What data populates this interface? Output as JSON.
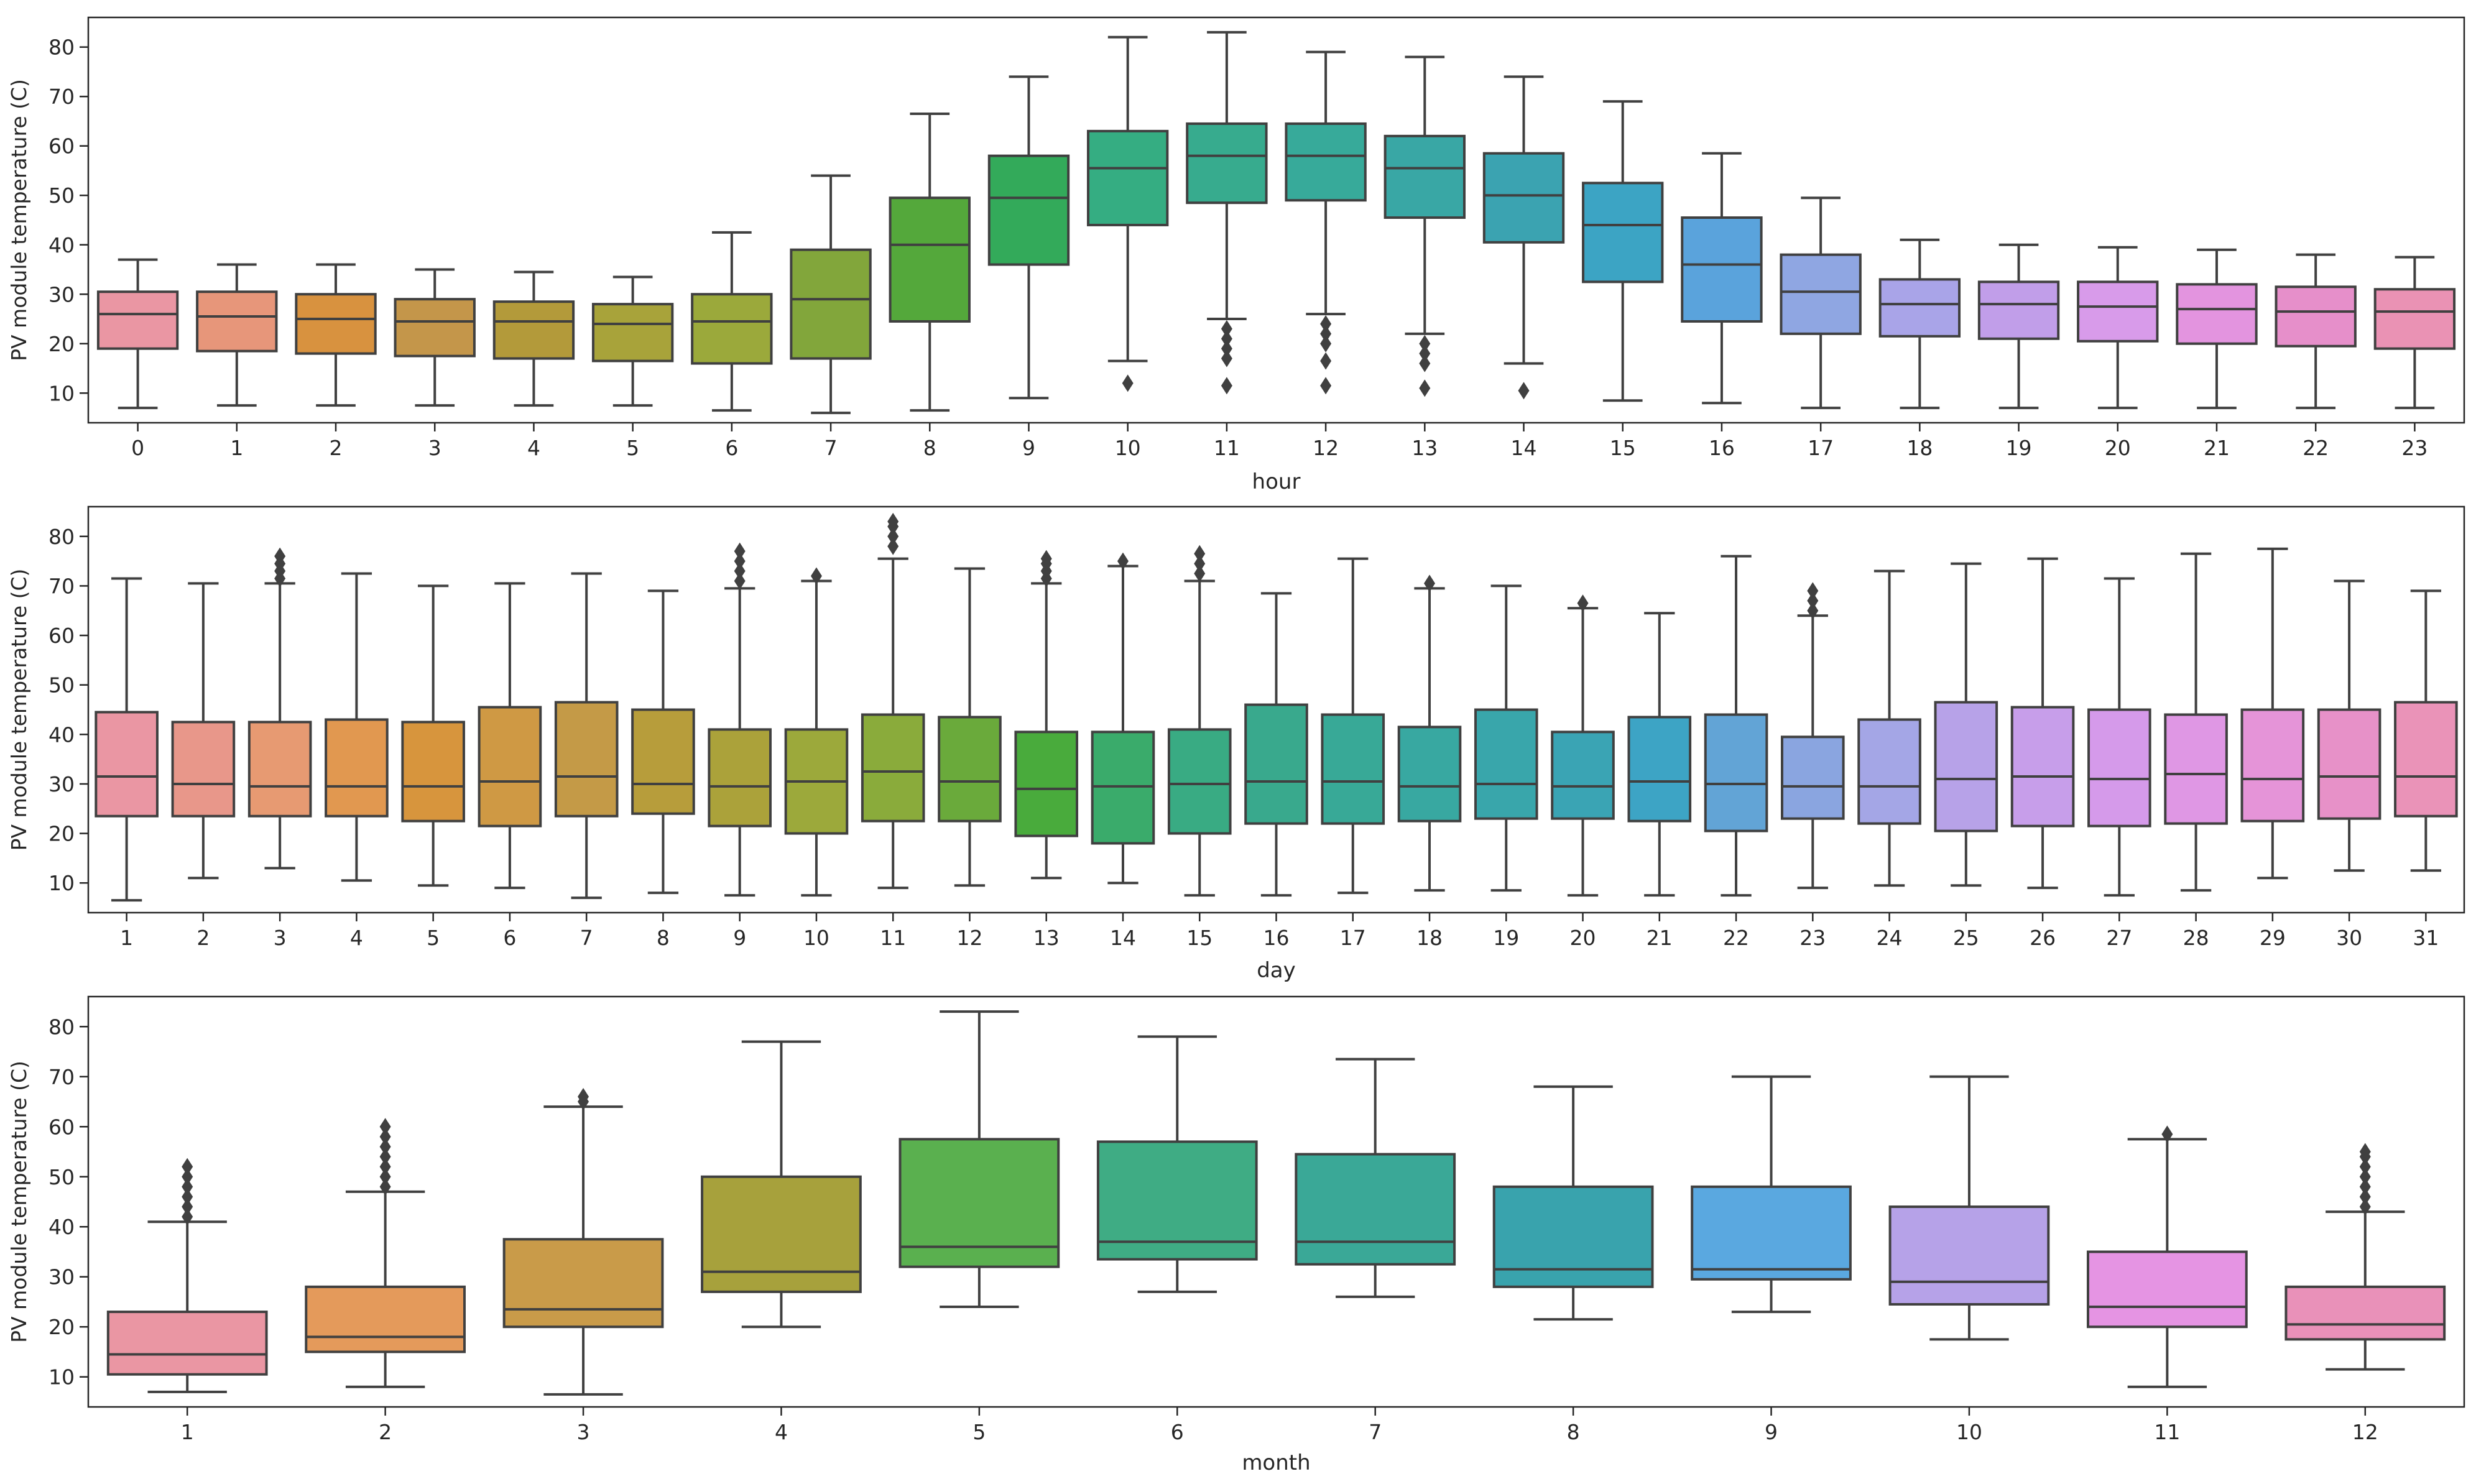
{
  "chart_data": [
    {
      "type": "boxplot",
      "xlabel": "hour",
      "ylabel": "PV module temperature (C)",
      "ylim": [
        4,
        86
      ],
      "yticks": [
        10,
        20,
        30,
        40,
        50,
        60,
        70,
        80
      ],
      "categories": [
        "0",
        "1",
        "2",
        "3",
        "4",
        "5",
        "6",
        "7",
        "8",
        "9",
        "10",
        "11",
        "12",
        "13",
        "14",
        "15",
        "16",
        "17",
        "18",
        "19",
        "20",
        "21",
        "22",
        "23"
      ],
      "colors": [
        "#ea96a3",
        "#e7967a",
        "#d8923f",
        "#c4964a",
        "#b39a3a",
        "#a8a33a",
        "#9ba93b",
        "#82a63b",
        "#54a83b",
        "#33aa5a",
        "#35ad82",
        "#37ab8e",
        "#37aa9a",
        "#39a7a5",
        "#3ba3b1",
        "#3ca4c4",
        "#5aa3dc",
        "#8fa6e2",
        "#a9a4e8",
        "#c19ee9",
        "#d89bea",
        "#e394df",
        "#e68fca",
        "#ea92b4"
      ],
      "series": [
        {
          "label": "0",
          "whislo": 7,
          "q1": 19,
          "median": 26,
          "q3": 30.5,
          "whishi": 37,
          "fliers": []
        },
        {
          "label": "1",
          "whislo": 7.5,
          "q1": 18.5,
          "median": 25.5,
          "q3": 30.5,
          "whishi": 36,
          "fliers": []
        },
        {
          "label": "2",
          "whislo": 7.5,
          "q1": 18,
          "median": 25,
          "q3": 30,
          "whishi": 36,
          "fliers": []
        },
        {
          "label": "3",
          "whislo": 7.5,
          "q1": 17.5,
          "median": 24.5,
          "q3": 29,
          "whishi": 35,
          "fliers": []
        },
        {
          "label": "4",
          "whislo": 7.5,
          "q1": 17,
          "median": 24.5,
          "q3": 28.5,
          "whishi": 34.5,
          "fliers": []
        },
        {
          "label": "5",
          "whislo": 7.5,
          "q1": 16.5,
          "median": 24,
          "q3": 28,
          "whishi": 33.5,
          "fliers": []
        },
        {
          "label": "6",
          "whislo": 6.5,
          "q1": 16,
          "median": 24.5,
          "q3": 30,
          "whishi": 42.5,
          "fliers": []
        },
        {
          "label": "7",
          "whislo": 6,
          "q1": 17,
          "median": 29,
          "q3": 39,
          "whishi": 54,
          "fliers": []
        },
        {
          "label": "8",
          "whislo": 6.5,
          "q1": 24.5,
          "median": 40,
          "q3": 49.5,
          "whishi": 66.5,
          "fliers": []
        },
        {
          "label": "9",
          "whislo": 9,
          "q1": 36,
          "median": 49.5,
          "q3": 58,
          "whishi": 74,
          "fliers": []
        },
        {
          "label": "10",
          "whislo": 16.5,
          "q1": 44,
          "median": 55.5,
          "q3": 63,
          "whishi": 82,
          "fliers": [
            12
          ]
        },
        {
          "label": "11",
          "whislo": 25,
          "q1": 48.5,
          "median": 58,
          "q3": 64.5,
          "whishi": 83,
          "fliers": [
            11.5,
            17,
            19,
            21,
            23
          ]
        },
        {
          "label": "12",
          "whislo": 26,
          "q1": 49,
          "median": 58,
          "q3": 64.5,
          "whishi": 79,
          "fliers": [
            11.5,
            16.5,
            20,
            22,
            24
          ]
        },
        {
          "label": "13",
          "whislo": 22,
          "q1": 45.5,
          "median": 55.5,
          "q3": 62,
          "whishi": 78,
          "fliers": [
            11,
            16,
            18,
            20
          ]
        },
        {
          "label": "14",
          "whislo": 16,
          "q1": 40.5,
          "median": 50,
          "q3": 58.5,
          "whishi": 74,
          "fliers": [
            10.5
          ]
        },
        {
          "label": "15",
          "whislo": 8.5,
          "q1": 32.5,
          "median": 44,
          "q3": 52.5,
          "whishi": 69,
          "fliers": []
        },
        {
          "label": "16",
          "whislo": 8,
          "q1": 24.5,
          "median": 36,
          "q3": 45.5,
          "whishi": 58.5,
          "fliers": []
        },
        {
          "label": "17",
          "whislo": 7,
          "q1": 22,
          "median": 30.5,
          "q3": 38,
          "whishi": 49.5,
          "fliers": []
        },
        {
          "label": "18",
          "whislo": 7,
          "q1": 21.5,
          "median": 28,
          "q3": 33,
          "whishi": 41,
          "fliers": []
        },
        {
          "label": "19",
          "whislo": 7,
          "q1": 21,
          "median": 28,
          "q3": 32.5,
          "whishi": 40,
          "fliers": []
        },
        {
          "label": "20",
          "whislo": 7,
          "q1": 20.5,
          "median": 27.5,
          "q3": 32.5,
          "whishi": 39.5,
          "fliers": []
        },
        {
          "label": "21",
          "whislo": 7,
          "q1": 20,
          "median": 27,
          "q3": 32,
          "whishi": 39,
          "fliers": []
        },
        {
          "label": "22",
          "whislo": 7,
          "q1": 19.5,
          "median": 26.5,
          "q3": 31.5,
          "whishi": 38,
          "fliers": []
        },
        {
          "label": "23",
          "whislo": 7,
          "q1": 19,
          "median": 26.5,
          "q3": 31,
          "whishi": 37.5,
          "fliers": []
        }
      ]
    },
    {
      "type": "boxplot",
      "xlabel": "day",
      "ylabel": "PV module temperature (C)",
      "ylim": [
        4,
        86
      ],
      "yticks": [
        10,
        20,
        30,
        40,
        50,
        60,
        70,
        80
      ],
      "categories": [
        "1",
        "2",
        "3",
        "4",
        "5",
        "6",
        "7",
        "8",
        "9",
        "10",
        "11",
        "12",
        "13",
        "14",
        "15",
        "16",
        "17",
        "18",
        "19",
        "20",
        "21",
        "22",
        "23",
        "24",
        "25",
        "26",
        "27",
        "28",
        "29",
        "30",
        "31"
      ],
      "colors": [
        "#ea96a3",
        "#e8978a",
        "#e79a72",
        "#e19850",
        "#d7953d",
        "#cf9944",
        "#c49a47",
        "#b79d3b",
        "#aba23a",
        "#9ca93b",
        "#8aab3b",
        "#6aaa3b",
        "#49ab3c",
        "#3aab6b",
        "#39ab83",
        "#39a98d",
        "#38a997",
        "#38a8a1",
        "#39a6ab",
        "#3aa4b4",
        "#3da4c5",
        "#62a4d6",
        "#8aa5e0",
        "#a4a6e6",
        "#b7a2e8",
        "#c79eea",
        "#d59aea",
        "#df97e4",
        "#e594d8",
        "#e791c8",
        "#ea93b8"
      ],
      "series": [
        {
          "label": "1",
          "whislo": 6.5,
          "q1": 23.5,
          "median": 31.5,
          "q3": 44.5,
          "whishi": 71.5,
          "fliers": []
        },
        {
          "label": "2",
          "whislo": 11,
          "q1": 23.5,
          "median": 30,
          "q3": 42.5,
          "whishi": 70.5,
          "fliers": []
        },
        {
          "label": "3",
          "whislo": 13,
          "q1": 23.5,
          "median": 29.5,
          "q3": 42.5,
          "whishi": 70.5,
          "fliers": [
            71.5,
            73,
            74.5,
            76
          ]
        },
        {
          "label": "4",
          "whislo": 10.5,
          "q1": 23.5,
          "median": 29.5,
          "q3": 43,
          "whishi": 72.5,
          "fliers": []
        },
        {
          "label": "5",
          "whislo": 9.5,
          "q1": 22.5,
          "median": 29.5,
          "q3": 42.5,
          "whishi": 70,
          "fliers": []
        },
        {
          "label": "6",
          "whislo": 9,
          "q1": 21.5,
          "median": 30.5,
          "q3": 45.5,
          "whishi": 70.5,
          "fliers": []
        },
        {
          "label": "7",
          "whislo": 7,
          "q1": 23.5,
          "median": 31.5,
          "q3": 46.5,
          "whishi": 72.5,
          "fliers": []
        },
        {
          "label": "8",
          "whislo": 8,
          "q1": 24,
          "median": 30,
          "q3": 45,
          "whishi": 69,
          "fliers": []
        },
        {
          "label": "9",
          "whislo": 7.5,
          "q1": 21.5,
          "median": 29.5,
          "q3": 41,
          "whishi": 69.5,
          "fliers": [
            71,
            73,
            75,
            77
          ]
        },
        {
          "label": "10",
          "whislo": 7.5,
          "q1": 20,
          "median": 30.5,
          "q3": 41,
          "whishi": 71,
          "fliers": [
            72
          ]
        },
        {
          "label": "11",
          "whislo": 9,
          "q1": 22.5,
          "median": 32.5,
          "q3": 44,
          "whishi": 75.5,
          "fliers": [
            78,
            80,
            82,
            83
          ]
        },
        {
          "label": "12",
          "whislo": 9.5,
          "q1": 22.5,
          "median": 30.5,
          "q3": 43.5,
          "whishi": 73.5,
          "fliers": []
        },
        {
          "label": "13",
          "whislo": 11,
          "q1": 19.5,
          "median": 29,
          "q3": 40.5,
          "whishi": 70.5,
          "fliers": [
            71.5,
            73,
            74.5,
            75.5
          ]
        },
        {
          "label": "14",
          "whislo": 10,
          "q1": 18,
          "median": 29.5,
          "q3": 40.5,
          "whishi": 74,
          "fliers": [
            75
          ]
        },
        {
          "label": "15",
          "whislo": 7.5,
          "q1": 20,
          "median": 30,
          "q3": 41,
          "whishi": 71,
          "fliers": [
            72.5,
            74.5,
            76.5
          ]
        },
        {
          "label": "16",
          "whislo": 7.5,
          "q1": 22,
          "median": 30.5,
          "q3": 46,
          "whishi": 68.5,
          "fliers": []
        },
        {
          "label": "17",
          "whislo": 8,
          "q1": 22,
          "median": 30.5,
          "q3": 44,
          "whishi": 75.5,
          "fliers": []
        },
        {
          "label": "18",
          "whislo": 8.5,
          "q1": 22.5,
          "median": 29.5,
          "q3": 41.5,
          "whishi": 69.5,
          "fliers": [
            70.5
          ]
        },
        {
          "label": "19",
          "whislo": 8.5,
          "q1": 23,
          "median": 30,
          "q3": 45,
          "whishi": 70,
          "fliers": []
        },
        {
          "label": "20",
          "whislo": 7.5,
          "q1": 23,
          "median": 29.5,
          "q3": 40.5,
          "whishi": 65.5,
          "fliers": [
            66.5
          ]
        },
        {
          "label": "21",
          "whislo": 7.5,
          "q1": 22.5,
          "median": 30.5,
          "q3": 43.5,
          "whishi": 64.5,
          "fliers": []
        },
        {
          "label": "22",
          "whislo": 7.5,
          "q1": 20.5,
          "median": 30,
          "q3": 44,
          "whishi": 76,
          "fliers": []
        },
        {
          "label": "23",
          "whislo": 9,
          "q1": 23,
          "median": 29.5,
          "q3": 39.5,
          "whishi": 64,
          "fliers": [
            65,
            67,
            69
          ]
        },
        {
          "label": "24",
          "whislo": 9.5,
          "q1": 22,
          "median": 29.5,
          "q3": 43,
          "whishi": 73,
          "fliers": []
        },
        {
          "label": "25",
          "whislo": 9.5,
          "q1": 20.5,
          "median": 31,
          "q3": 46.5,
          "whishi": 74.5,
          "fliers": []
        },
        {
          "label": "26",
          "whislo": 9,
          "q1": 21.5,
          "median": 31.5,
          "q3": 45.5,
          "whishi": 75.5,
          "fliers": []
        },
        {
          "label": "27",
          "whislo": 7.5,
          "q1": 21.5,
          "median": 31,
          "q3": 45,
          "whishi": 71.5,
          "fliers": []
        },
        {
          "label": "28",
          "whislo": 8.5,
          "q1": 22,
          "median": 32,
          "q3": 44,
          "whishi": 76.5,
          "fliers": []
        },
        {
          "label": "29",
          "whislo": 11,
          "q1": 22.5,
          "median": 31,
          "q3": 45,
          "whishi": 77.5,
          "fliers": []
        },
        {
          "label": "30",
          "whislo": 12.5,
          "q1": 23,
          "median": 31.5,
          "q3": 45,
          "whishi": 71,
          "fliers": []
        },
        {
          "label": "31",
          "whislo": 12.5,
          "q1": 23.5,
          "median": 31.5,
          "q3": 46.5,
          "whishi": 69,
          "fliers": []
        }
      ]
    },
    {
      "type": "boxplot",
      "xlabel": "month",
      "ylabel": "PV module temperature (C)",
      "ylim": [
        4,
        86
      ],
      "yticks": [
        10,
        20,
        30,
        40,
        50,
        60,
        70,
        80
      ],
      "categories": [
        "1",
        "2",
        "3",
        "4",
        "5",
        "6",
        "7",
        "8",
        "9",
        "10",
        "11",
        "12"
      ],
      "colors": [
        "#ea96a3",
        "#e49a5b",
        "#c99b49",
        "#a7a13c",
        "#5ab04f",
        "#3fac84",
        "#3aa897",
        "#39a3ad",
        "#5aa8e0",
        "#b6a2e8",
        "#e594e3",
        "#e991b9"
      ],
      "series": [
        {
          "label": "1",
          "whislo": 7,
          "q1": 10.5,
          "median": 14.5,
          "q3": 23,
          "whishi": 41,
          "fliers": [
            42,
            44,
            46,
            48,
            50,
            52
          ]
        },
        {
          "label": "2",
          "whislo": 8,
          "q1": 15,
          "median": 18,
          "q3": 28,
          "whishi": 47,
          "fliers": [
            48,
            50,
            52,
            54,
            56,
            58,
            60
          ]
        },
        {
          "label": "3",
          "whislo": 6.5,
          "q1": 20,
          "median": 23.5,
          "q3": 37.5,
          "whishi": 64,
          "fliers": [
            65,
            66
          ]
        },
        {
          "label": "4",
          "whislo": 20,
          "q1": 27,
          "median": 31,
          "q3": 50,
          "whishi": 77,
          "fliers": []
        },
        {
          "label": "5",
          "whislo": 24,
          "q1": 32,
          "median": 36,
          "q3": 57.5,
          "whishi": 83,
          "fliers": []
        },
        {
          "label": "6",
          "whislo": 27,
          "q1": 33.5,
          "median": 37,
          "q3": 57,
          "whishi": 78,
          "fliers": []
        },
        {
          "label": "7",
          "whislo": 26,
          "q1": 32.5,
          "median": 37,
          "q3": 54.5,
          "whishi": 73.5,
          "fliers": []
        },
        {
          "label": "8",
          "whislo": 21.5,
          "q1": 28,
          "median": 31.5,
          "q3": 48,
          "whishi": 68,
          "fliers": []
        },
        {
          "label": "9",
          "whislo": 23,
          "q1": 29.5,
          "median": 31.5,
          "q3": 48,
          "whishi": 70,
          "fliers": []
        },
        {
          "label": "10",
          "whislo": 17.5,
          "q1": 24.5,
          "median": 29,
          "q3": 44,
          "whishi": 70,
          "fliers": []
        },
        {
          "label": "11",
          "whislo": 8,
          "q1": 20,
          "median": 24,
          "q3": 35,
          "whishi": 57.5,
          "fliers": [
            58.5
          ]
        },
        {
          "label": "12",
          "whislo": 11.5,
          "q1": 17.5,
          "median": 20.5,
          "q3": 28,
          "whishi": 43,
          "fliers": [
            44,
            46,
            48,
            50,
            52,
            54,
            55
          ]
        }
      ]
    }
  ]
}
